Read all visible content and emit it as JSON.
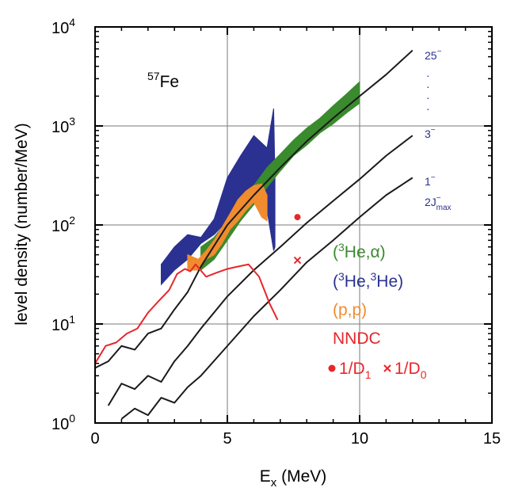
{
  "colors": {
    "he_alpha": "#3a8a2e",
    "he_he": "#2a3190",
    "pp": "#f08c2e",
    "nndc": "#e8262a",
    "model": "#1a1a1a",
    "grid": "#7a7a7a"
  },
  "chart_data": {
    "type": "line",
    "nucleus_label": {
      "mass": "57",
      "element": "Fe"
    },
    "xlabel": {
      "main": "E",
      "sub": "x",
      "unit": " (MeV)"
    },
    "ylabel": "level density (number/MeV)",
    "xlim": [
      0,
      15
    ],
    "ylim": [
      1,
      10000
    ],
    "yscale": "log",
    "grid": true,
    "x_ticks": [
      "0",
      "5",
      "10",
      "15"
    ],
    "y_ticks": [
      {
        "base": "10",
        "exp": "0",
        "value": 1
      },
      {
        "base": "10",
        "exp": "1",
        "value": 10
      },
      {
        "base": "10",
        "exp": "2",
        "value": 100
      },
      {
        "base": "10",
        "exp": "3",
        "value": 1000
      },
      {
        "base": "10",
        "exp": "4",
        "value": 10000
      }
    ],
    "legend": {
      "he_alpha": {
        "pre": "(",
        "sup": "3",
        "post": "He,α)"
      },
      "he_he": {
        "pre": "(",
        "sup1": "3",
        "mid": "He,",
        "sup2": "3",
        "post": "He)"
      },
      "pp": "(p,p)",
      "nndc": "NNDC",
      "d1": {
        "pre": "1/D",
        "sub": "1"
      },
      "d0": {
        "pre": "1/D",
        "sub": "0"
      }
    },
    "spin_labels": {
      "top": {
        "base": "25",
        "sup": "−"
      },
      "dots": "·",
      "mid": {
        "base": "3",
        "sup": "−"
      },
      "low": {
        "base": "1",
        "sup": "−"
      },
      "jmax": {
        "base": "2J",
        "sup": "−",
        "sub": "max"
      }
    },
    "series": [
      {
        "key": "model_25",
        "type": "line",
        "x": [
          0,
          0.5,
          1,
          1.5,
          2,
          2.5,
          3,
          3.5,
          4,
          5,
          6,
          7,
          8,
          9,
          10,
          11,
          12
        ],
        "y": [
          3.6,
          4.2,
          6,
          5.5,
          8,
          9,
          14,
          21,
          38,
          100,
          200,
          380,
          700,
          1200,
          2000,
          3300,
          5800
        ]
      },
      {
        "key": "model_3",
        "type": "line",
        "x": [
          0.5,
          1,
          1.5,
          2,
          2.5,
          3,
          3.5,
          4,
          5,
          6,
          7,
          8,
          9,
          10,
          11,
          12
        ],
        "y": [
          1.5,
          2.5,
          2.2,
          3.0,
          2.6,
          4.2,
          6,
          9,
          19,
          35,
          60,
          105,
          175,
          290,
          500,
          800
        ]
      },
      {
        "key": "model_1",
        "type": "line",
        "x": [
          1,
          1.5,
          2,
          2.5,
          3,
          3.5,
          4,
          5,
          6,
          7,
          8,
          9,
          10,
          11,
          12
        ],
        "y": [
          1.1,
          1.4,
          1.2,
          1.8,
          1.6,
          2.3,
          3.0,
          6,
          12,
          22,
          42,
          70,
          120,
          200,
          300
        ]
      },
      {
        "key": "nndc",
        "type": "line",
        "x": [
          0,
          0.4,
          0.8,
          1.2,
          1.6,
          2.0,
          2.4,
          2.8,
          3.1,
          3.4,
          3.6,
          3.8,
          4.2,
          4.6,
          5.0,
          5.4,
          5.8,
          6.2,
          6.6,
          6.9
        ],
        "y": [
          4,
          6,
          6.5,
          8,
          9,
          13,
          17,
          22,
          32,
          36,
          34,
          40,
          30,
          33,
          36,
          38,
          40,
          30,
          16,
          11
        ]
      },
      {
        "key": "he_he",
        "type": "band",
        "x": [
          2.5,
          3.0,
          3.5,
          4.0,
          4.5,
          5.0,
          5.5,
          6.0,
          6.5,
          6.75,
          6.8
        ],
        "lo": [
          25,
          35,
          45,
          65,
          80,
          110,
          160,
          200,
          140,
          55,
          60
        ],
        "hi": [
          40,
          60,
          80,
          75,
          115,
          300,
          500,
          800,
          600,
          1500,
          300
        ]
      },
      {
        "key": "he_alpha",
        "type": "band",
        "x": [
          4.0,
          4.5,
          5.0,
          5.5,
          6.0,
          6.5,
          7.0,
          7.5,
          8.0,
          8.5,
          9.0,
          9.5,
          10.0
        ],
        "lo": [
          35,
          45,
          70,
          110,
          160,
          240,
          350,
          500,
          640,
          850,
          1050,
          1350,
          1700
        ],
        "hi": [
          60,
          75,
          110,
          170,
          250,
          380,
          520,
          720,
          950,
          1200,
          1600,
          2100,
          2800
        ]
      },
      {
        "key": "pp",
        "type": "band",
        "x": [
          3.5,
          3.9,
          4.2,
          4.5,
          4.8,
          5.1,
          5.4,
          5.7,
          6.0,
          6.3,
          6.5
        ],
        "lo": [
          35,
          35,
          45,
          50,
          65,
          90,
          110,
          140,
          170,
          120,
          110
        ],
        "hi": [
          50,
          45,
          55,
          70,
          95,
          130,
          180,
          220,
          250,
          260,
          200
        ]
      }
    ],
    "points": [
      {
        "key": "d1",
        "x": 7.65,
        "y": 120,
        "marker": "dot"
      },
      {
        "key": "d0",
        "x": 7.65,
        "y": 44,
        "marker": "cross"
      }
    ]
  }
}
